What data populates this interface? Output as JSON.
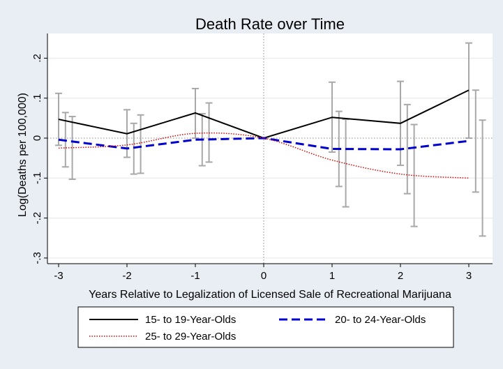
{
  "chart_data": {
    "type": "line",
    "title": "Death Rate over Time",
    "xlabel": "Years Relative to Legalization of Licensed Sale of Recreational Marijuana",
    "ylabel": "Log(Deaths per 100,000)",
    "xlim": [
      -3.1,
      3.25
    ],
    "ylim": [
      -0.31,
      0.26
    ],
    "x_ticks": [
      -3,
      -2,
      -1,
      0,
      1,
      2,
      3
    ],
    "x_tick_labels": [
      "-3",
      "-2",
      "-1",
      "0",
      "1",
      "2",
      "3"
    ],
    "y_ticks": [
      -0.3,
      -0.2,
      -0.1,
      0,
      0.1,
      0.2
    ],
    "y_tick_labels": [
      "-.3",
      "-.2",
      "-.1",
      "0",
      ".1",
      ".2"
    ],
    "grid": true,
    "reference_lines": {
      "x": 0,
      "y": 0
    },
    "legend_position": "bottom",
    "series": [
      {
        "name": "15- to 19-Year-Olds",
        "color": "#000000",
        "style": "solid",
        "x": [
          -3,
          -2,
          -1,
          0,
          1,
          2,
          3
        ],
        "values": [
          0.047,
          0.011,
          0.063,
          0.0,
          0.052,
          0.037,
          0.12
        ],
        "ci_x": [
          -3,
          -2,
          -1,
          1,
          2,
          3
        ],
        "ci_low": [
          -0.018,
          -0.048,
          0.0,
          -0.035,
          -0.068,
          0.0
        ],
        "ci_high": [
          0.112,
          0.071,
          0.124,
          0.14,
          0.142,
          0.238
        ]
      },
      {
        "name": "20- to 24-Year-Olds",
        "color": "#0000cc",
        "style": "dashed",
        "x": [
          -3,
          -2,
          -1,
          0,
          1,
          2,
          3
        ],
        "values": [
          -0.004,
          -0.026,
          -0.004,
          0.0,
          -0.027,
          -0.028,
          -0.007
        ],
        "ci_x": [
          -2.9,
          -1.9,
          -0.9,
          1.1,
          2.1,
          3.1
        ],
        "ci_low": [
          -0.072,
          -0.09,
          -0.069,
          -0.121,
          -0.139,
          -0.135
        ],
        "ci_high": [
          0.064,
          0.037,
          0.061,
          0.067,
          0.084,
          0.12
        ]
      },
      {
        "name": "25- to 29-Year-Olds",
        "color": "#dd0000",
        "style": "dotted",
        "x": [
          -3,
          -2,
          -1,
          0,
          1,
          2,
          3
        ],
        "values": [
          -0.025,
          -0.017,
          0.012,
          0.0,
          -0.055,
          -0.09,
          -0.1
        ],
        "ci_x": [
          -2.8,
          -1.8,
          -0.8,
          1.2,
          2.2,
          3.2
        ],
        "ci_low": [
          -0.103,
          -0.088,
          -0.06,
          -0.172,
          -0.221,
          -0.245
        ],
        "ci_high": [
          0.054,
          0.058,
          0.088,
          0.047,
          0.034,
          0.045
        ]
      }
    ]
  }
}
